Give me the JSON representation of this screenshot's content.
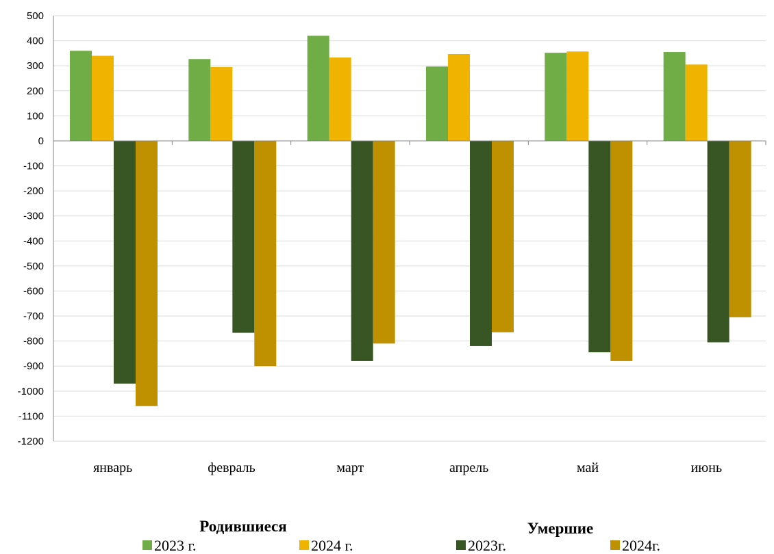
{
  "chart_data": {
    "type": "bar",
    "categories": [
      "январь",
      "февраль",
      "март",
      "апрель",
      "май",
      "июнь"
    ],
    "series": [
      {
        "name": "2023 г.",
        "group": "Родившиеся",
        "color": "#70ad47",
        "values": [
          360,
          327,
          420,
          297,
          352,
          355
        ]
      },
      {
        "name": "2024 г.",
        "group": "Родившиеся",
        "color": "#f0b400",
        "values": [
          340,
          295,
          333,
          347,
          357,
          305
        ]
      },
      {
        "name": "2023г.",
        "group": "Умершие",
        "color": "#375623",
        "values": [
          -970,
          -767,
          -880,
          -820,
          -845,
          -805
        ]
      },
      {
        "name": "2024г.",
        "group": "Умершие",
        "color": "#bf9000",
        "values": [
          -1060,
          -900,
          -810,
          -765,
          -880,
          -705
        ]
      }
    ],
    "ylim": [
      -1200,
      500
    ],
    "yticks": [
      500,
      400,
      300,
      200,
      100,
      0,
      -100,
      -200,
      -300,
      -400,
      -500,
      -600,
      -700,
      -800,
      -900,
      -1000,
      -1100,
      -1200
    ],
    "grid": true,
    "legend_groups": [
      "Родившиеся",
      "Умершие"
    ],
    "legend_position": "bottom"
  }
}
